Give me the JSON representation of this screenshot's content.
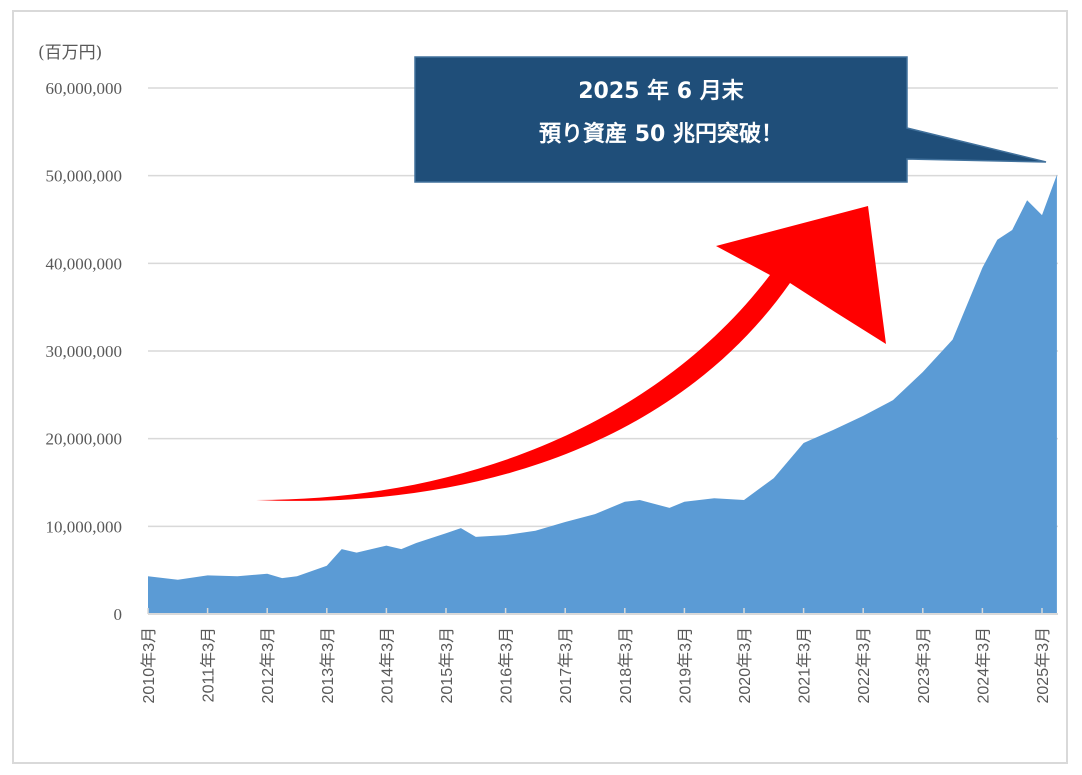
{
  "chart_data": {
    "type": "area",
    "title": "",
    "xlabel": "",
    "ylabel": "(百万円)",
    "ylim": [
      0,
      60000000
    ],
    "yticks": [
      0,
      10000000,
      20000000,
      30000000,
      40000000,
      50000000,
      60000000
    ],
    "ytick_labels": [
      "0",
      "10,000,000",
      "20,000,000",
      "30,000,000",
      "40,000,000",
      "50,000,000",
      "60,000,000"
    ],
    "xtick_labels": [
      "2010年3月",
      "2011年3月",
      "2012年3月",
      "2013年3月",
      "2014年3月",
      "2015年3月",
      "2016年3月",
      "2017年3月",
      "2018年3月",
      "2019年3月",
      "2020年3月",
      "2021年3月",
      "2022年3月",
      "2023年3月",
      "2024年3月",
      "2025年3月"
    ],
    "grid": true,
    "series_color": "#5b9bd5",
    "x": [
      "2010-03",
      "2010-09",
      "2011-03",
      "2011-09",
      "2012-03",
      "2012-06",
      "2012-09",
      "2013-03",
      "2013-06",
      "2013-09",
      "2014-03",
      "2014-06",
      "2014-09",
      "2015-03",
      "2015-06",
      "2015-09",
      "2016-03",
      "2016-09",
      "2017-03",
      "2017-09",
      "2018-03",
      "2018-06",
      "2018-12",
      "2019-03",
      "2019-09",
      "2020-03",
      "2020-09",
      "2021-03",
      "2021-09",
      "2022-03",
      "2022-09",
      "2023-03",
      "2023-09",
      "2024-03",
      "2024-06",
      "2024-09",
      "2024-12",
      "2025-03",
      "2025-06"
    ],
    "values": [
      4300000,
      3900000,
      4400000,
      4300000,
      4600000,
      4100000,
      4300000,
      5500000,
      7400000,
      7000000,
      7800000,
      7400000,
      8100000,
      9200000,
      9800000,
      8800000,
      9000000,
      9500000,
      10500000,
      11400000,
      12800000,
      13000000,
      12100000,
      12800000,
      13200000,
      13000000,
      15500000,
      19500000,
      21000000,
      22600000,
      24400000,
      27600000,
      31300000,
      39500000,
      42700000,
      43800000,
      47200000,
      45500000,
      50100000
    ],
    "annotation": {
      "line1": "2025 年 6 月末",
      "line2": "預り資産 50 兆円突破！",
      "box_color": "#1f4e79"
    },
    "arrow_color": "#ff0000"
  }
}
